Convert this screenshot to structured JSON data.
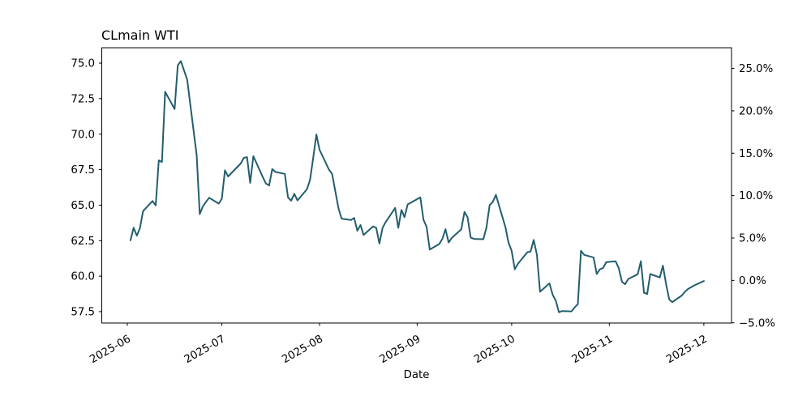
{
  "chart_data": {
    "type": "line",
    "title": "CLmain WTI",
    "xlabel": "Date",
    "grid": false,
    "legend": "none",
    "x_tick_labels": [
      "2025-06",
      "2025-07",
      "2025-08",
      "2025-09",
      "2025-10",
      "2025-11",
      "2025-12"
    ],
    "left_axis": {
      "tick_labels": [
        "75.0",
        "72.5",
        "70.0",
        "67.5",
        "65.0",
        "62.5",
        "60.0",
        "57.5"
      ],
      "tick_values": [
        75.0,
        72.5,
        70.0,
        67.5,
        65.0,
        62.5,
        60.0,
        57.5
      ],
      "ylim": [
        56.7,
        76.1
      ]
    },
    "right_axis": {
      "unit": "percent",
      "tick_labels": [
        "25.0%",
        "20.0%",
        "15.0%",
        "10.0%",
        "5.0%",
        "0.0%",
        "−5.0%"
      ],
      "tick_values": [
        25.0,
        20.0,
        15.0,
        10.0,
        5.0,
        0.0,
        -5.0
      ]
    },
    "series": [
      {
        "name": "CLmain WTI",
        "color": "#235e6e",
        "dates": [
          "2025-06-02",
          "2025-06-03",
          "2025-06-04",
          "2025-06-05",
          "2025-06-06",
          "2025-06-09",
          "2025-06-10",
          "2025-06-11",
          "2025-06-12",
          "2025-06-13",
          "2025-06-16",
          "2025-06-17",
          "2025-06-18",
          "2025-06-20",
          "2025-06-23",
          "2025-06-24",
          "2025-06-25",
          "2025-06-26",
          "2025-06-27",
          "2025-06-30",
          "2025-07-01",
          "2025-07-02",
          "2025-07-03",
          "2025-07-07",
          "2025-07-08",
          "2025-07-09",
          "2025-07-10",
          "2025-07-11",
          "2025-07-14",
          "2025-07-15",
          "2025-07-16",
          "2025-07-17",
          "2025-07-18",
          "2025-07-21",
          "2025-07-22",
          "2025-07-23",
          "2025-07-24",
          "2025-07-25",
          "2025-07-28",
          "2025-07-29",
          "2025-07-30",
          "2025-07-31",
          "2025-08-01",
          "2025-08-04",
          "2025-08-05",
          "2025-08-06",
          "2025-08-07",
          "2025-08-08",
          "2025-08-11",
          "2025-08-12",
          "2025-08-13",
          "2025-08-14",
          "2025-08-15",
          "2025-08-18",
          "2025-08-19",
          "2025-08-20",
          "2025-08-21",
          "2025-08-22",
          "2025-08-25",
          "2025-08-26",
          "2025-08-27",
          "2025-08-28",
          "2025-08-29",
          "2025-09-02",
          "2025-09-03",
          "2025-09-04",
          "2025-09-05",
          "2025-09-08",
          "2025-09-09",
          "2025-09-10",
          "2025-09-11",
          "2025-09-12",
          "2025-09-15",
          "2025-09-16",
          "2025-09-17",
          "2025-09-18",
          "2025-09-19",
          "2025-09-22",
          "2025-09-23",
          "2025-09-24",
          "2025-09-25",
          "2025-09-26",
          "2025-09-29",
          "2025-09-30",
          "2025-10-01",
          "2025-10-02",
          "2025-10-03",
          "2025-10-06",
          "2025-10-07",
          "2025-10-08",
          "2025-10-09",
          "2025-10-10",
          "2025-10-13",
          "2025-10-14",
          "2025-10-15",
          "2025-10-16",
          "2025-10-17",
          "2025-10-20",
          "2025-10-21",
          "2025-10-22",
          "2025-10-23",
          "2025-10-24",
          "2025-10-27",
          "2025-10-28",
          "2025-10-29",
          "2025-10-30",
          "2025-10-31",
          "2025-11-03",
          "2025-11-04",
          "2025-11-05",
          "2025-11-06",
          "2025-11-07",
          "2025-11-10",
          "2025-11-11",
          "2025-11-12",
          "2025-11-13",
          "2025-11-14",
          "2025-11-17",
          "2025-11-18",
          "2025-11-19",
          "2025-11-20",
          "2025-11-21",
          "2025-11-24",
          "2025-11-25",
          "2025-11-26",
          "2025-11-28",
          "2025-12-01"
        ],
        "closes": [
          62.52,
          63.41,
          62.85,
          63.37,
          64.58,
          65.29,
          64.98,
          68.15,
          68.04,
          72.98,
          71.77,
          74.84,
          75.14,
          73.84,
          68.51,
          64.37,
          64.92,
          65.24,
          65.52,
          65.11,
          65.45,
          67.45,
          67.02,
          67.93,
          68.33,
          68.38,
          66.57,
          68.45,
          66.98,
          66.52,
          66.38,
          67.54,
          67.34,
          67.2,
          65.55,
          65.31,
          65.8,
          65.33,
          66.11,
          66.78,
          68.33,
          69.98,
          68.9,
          67.5,
          67.2,
          66.0,
          64.8,
          64.05,
          63.95,
          64.1,
          63.2,
          63.6,
          62.9,
          63.5,
          63.4,
          62.3,
          63.4,
          63.8,
          64.8,
          63.4,
          64.66,
          64.15,
          65.05,
          65.55,
          63.97,
          63.48,
          61.87,
          62.26,
          62.63,
          63.3,
          62.37,
          62.69,
          63.3,
          64.52,
          64.15,
          62.72,
          62.62,
          62.6,
          63.41,
          64.99,
          65.23,
          65.72,
          63.45,
          62.37,
          61.78,
          60.48,
          60.88,
          61.69,
          61.73,
          62.55,
          61.51,
          58.9,
          59.49,
          58.7,
          58.27,
          57.46,
          57.54,
          57.52,
          57.8,
          58.02,
          61.79,
          61.5,
          61.31,
          60.15,
          60.48,
          60.57,
          60.98,
          61.05,
          60.56,
          59.6,
          59.43,
          59.8,
          60.13,
          61.05,
          58.83,
          58.74,
          60.15,
          59.91,
          60.74,
          59.44,
          58.36,
          58.17,
          58.64,
          58.9,
          59.1,
          59.35,
          59.65
        ]
      }
    ]
  }
}
